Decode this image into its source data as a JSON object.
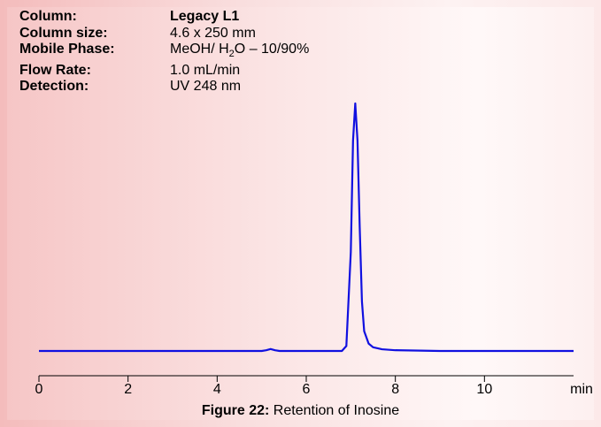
{
  "info": [
    {
      "label": "Column:",
      "value": "Legacy L1"
    },
    {
      "label": "Column size:",
      "value": "4.6 x 250 mm"
    },
    {
      "label": "Mobile Phase:",
      "value": {
        "before": "MeOH/ H",
        "sub": "2",
        "after": "O – 10/90%"
      }
    },
    {
      "label": "Flow Rate:",
      "value": "1.0 mL/min"
    },
    {
      "label": "Detection:",
      "value": "UV 248 nm"
    }
  ],
  "chart_data": {
    "type": "line",
    "x_label": "min",
    "x": [
      0,
      1,
      2,
      3,
      4,
      5,
      5.1,
      5.2,
      5.3,
      5.4,
      6,
      6.8,
      6.9,
      7.0,
      7.05,
      7.1,
      7.15,
      7.2,
      7.25,
      7.3,
      7.4,
      7.5,
      7.7,
      8,
      9,
      10,
      12
    ],
    "series": [
      {
        "color": "#1010e0",
        "values": [
          0,
          0,
          0,
          0,
          0,
          0,
          0.3,
          0.8,
          0.3,
          0,
          0,
          0,
          2,
          40,
          85,
          100,
          85,
          50,
          20,
          8,
          3,
          1.5,
          0.7,
          0.3,
          0,
          0,
          0
        ]
      }
    ],
    "xlim": [
      0,
      12
    ],
    "xticks": [
      0,
      2,
      4,
      6,
      8,
      10
    ],
    "ylim": [
      -10,
      100
    ]
  },
  "caption": {
    "label": "Figure 22:",
    "text": "Retention of Inosine"
  }
}
